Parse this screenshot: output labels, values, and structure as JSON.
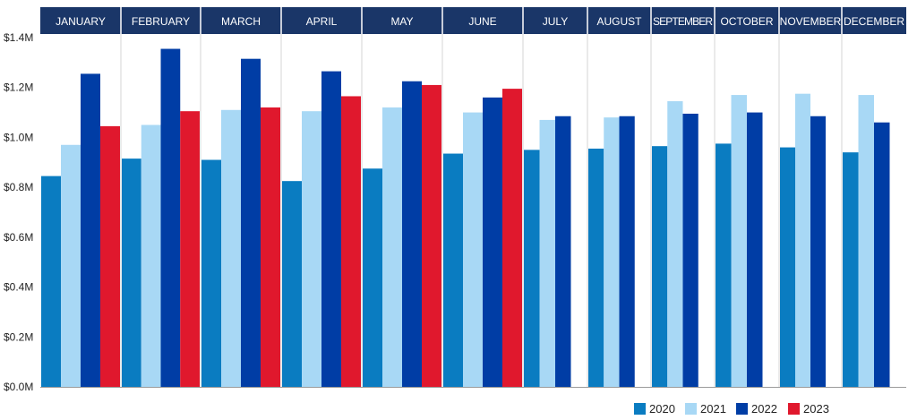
{
  "chart_data": {
    "type": "bar",
    "categories": [
      "JANUARY",
      "FEBRUARY",
      "MARCH",
      "APRIL",
      "MAY",
      "JUNE",
      "JULY",
      "AUGUST",
      "SEPTEMBER",
      "OCTOBER",
      "NOVEMBER",
      "DECEMBER"
    ],
    "series": [
      {
        "name": "2020",
        "color": "#0a7cc1",
        "values": [
          0.845,
          0.915,
          0.91,
          0.825,
          0.875,
          0.935,
          0.95,
          0.955,
          0.965,
          0.975,
          0.96,
          0.94
        ]
      },
      {
        "name": "2021",
        "color": "#a8d8f5",
        "values": [
          0.97,
          1.05,
          1.11,
          1.105,
          1.12,
          1.1,
          1.07,
          1.08,
          1.145,
          1.17,
          1.175,
          1.17
        ]
      },
      {
        "name": "2022",
        "color": "#003da5",
        "values": [
          1.255,
          1.355,
          1.315,
          1.265,
          1.225,
          1.16,
          1.085,
          1.085,
          1.095,
          1.1,
          1.085,
          1.06
        ]
      },
      {
        "name": "2023",
        "color": "#e0182d",
        "values": [
          1.045,
          1.105,
          1.12,
          1.165,
          1.21,
          1.195,
          null,
          null,
          null,
          null,
          null,
          null
        ]
      }
    ],
    "ylim": [
      0,
      1.4
    ],
    "yticks": [
      "$0.0M",
      "$0.2M",
      "$0.4M",
      "$0.6M",
      "$0.8M",
      "$1.0M",
      "$1.2M",
      "$1.4M"
    ],
    "grid": false,
    "legend_position": "bottom-right",
    "header_color": "#1a3668"
  }
}
